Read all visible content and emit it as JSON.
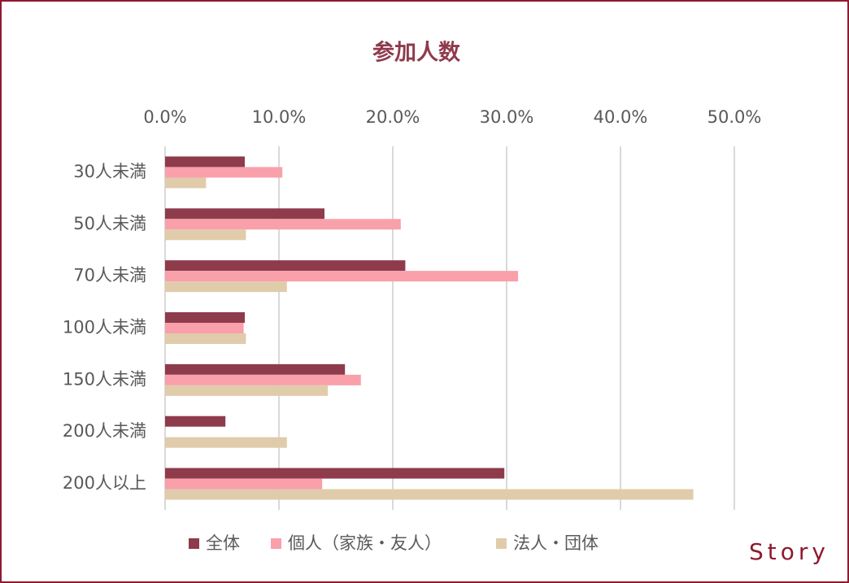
{
  "chart_data": {
    "type": "hbar",
    "title": "参加人数",
    "categories": [
      "30人未満",
      "50人未満",
      "70人未満",
      "100人未満",
      "150人未満",
      "200人未満",
      "200人以上"
    ],
    "series": [
      {
        "name": "全体",
        "color": "#8e3b4c",
        "values": [
          7.0,
          14.0,
          21.1,
          7.0,
          15.8,
          5.3,
          29.8
        ]
      },
      {
        "name": "個人（家族・友人）",
        "color": "#f9a0ab",
        "values": [
          10.3,
          20.7,
          31.0,
          6.9,
          17.2,
          0,
          13.8
        ]
      },
      {
        "name": "法人・団体",
        "color": "#e0ccaa",
        "values": [
          3.6,
          7.1,
          10.7,
          7.1,
          14.3,
          10.7,
          46.4
        ]
      }
    ],
    "xlim": [
      0,
      50
    ],
    "xticks": [
      {
        "value": 0,
        "label": "0.0%"
      },
      {
        "value": 10,
        "label": "10.0%"
      },
      {
        "value": 20,
        "label": "20.0%"
      },
      {
        "value": 30,
        "label": "30.0%"
      },
      {
        "value": 40,
        "label": "40.0%"
      },
      {
        "value": 50,
        "label": "50.0%"
      }
    ],
    "grid": true,
    "legend": "bottom",
    "brand": "Story"
  }
}
